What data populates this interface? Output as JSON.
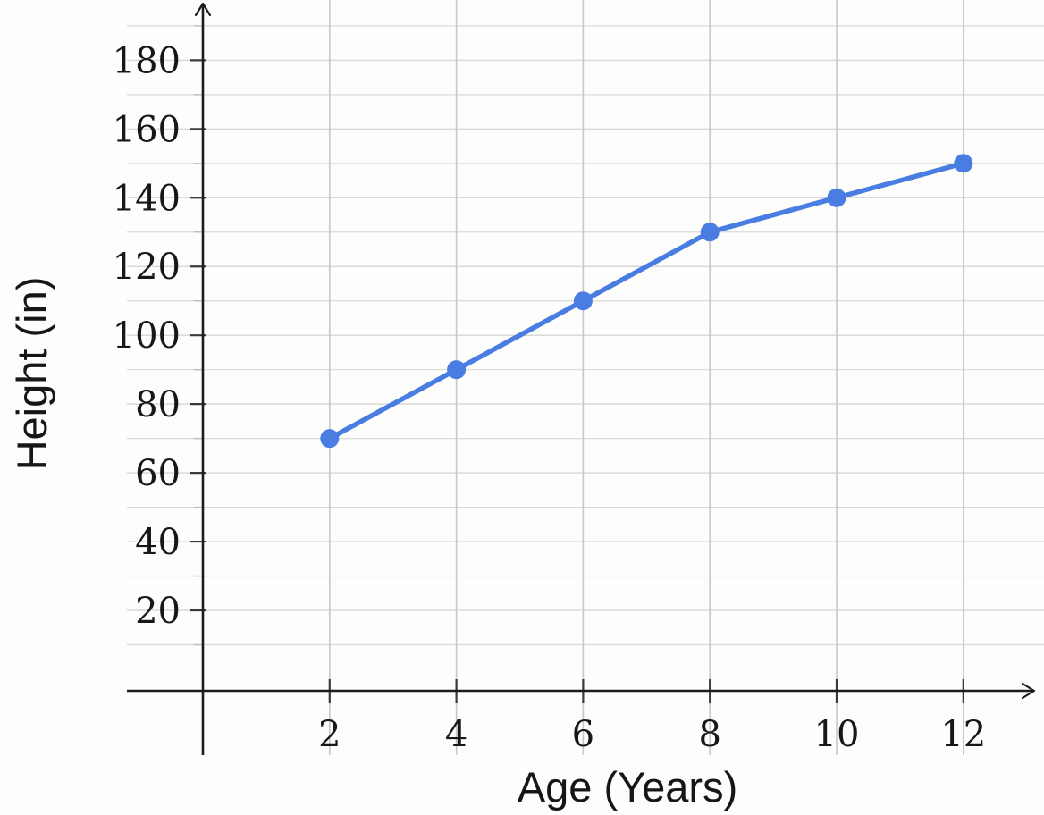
{
  "page": {
    "background_color": "#fdfdfc"
  },
  "chart_data": {
    "type": "line",
    "title": "",
    "xlabel": "Age (Years)",
    "ylabel": "Height (in)",
    "x": [
      2,
      4,
      6,
      8,
      10,
      12
    ],
    "series": [
      {
        "name": "height",
        "values": [
          70,
          90,
          110,
          130,
          140,
          150
        ],
        "color": "#4a7de1",
        "marker": "circle"
      }
    ],
    "x_ticks": [
      2,
      4,
      6,
      8,
      10,
      12
    ],
    "y_ticks": [
      20,
      40,
      60,
      80,
      100,
      120,
      140,
      160,
      180
    ],
    "y_minor_step": 10,
    "y_minor_max": 190,
    "xlim": [
      0,
      13.2
    ],
    "ylim": [
      0,
      195
    ],
    "grid": true,
    "legend": "none",
    "axes_arrows": true,
    "colors": {
      "axis": "#1c1c1c",
      "h_grid": "#d9d9d9",
      "v_grid": "#c7c7c7",
      "major_tick": "#3a3a3a",
      "minor_tick": "#c0c0c0",
      "tick_text": "#171717"
    }
  }
}
